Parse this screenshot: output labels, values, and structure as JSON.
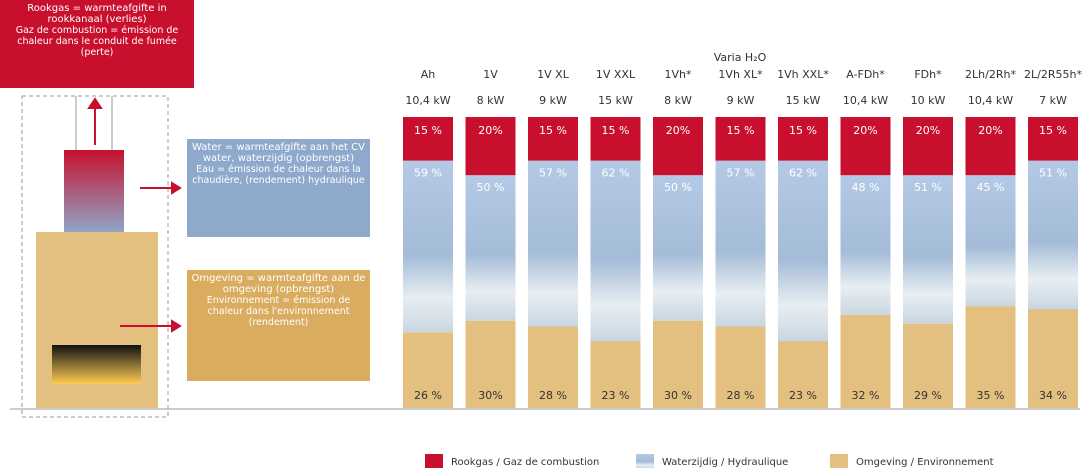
{
  "chart_data": {
    "type": "stacked_bar",
    "title": "Varia H₂O",
    "categories": [
      "Ah",
      "1V",
      "1V XL",
      "1V XXL",
      "1Vh*",
      "1Vh XL*",
      "1Vh XXL*",
      "A-FDh*",
      "FDh*",
      "2Lh/2Rh*",
      "2L/2R55h*"
    ],
    "power_labels": [
      "10,4 kW",
      "8 kW",
      "9 kW",
      "15 kW",
      "8 kW",
      "9 kW",
      "15 kW",
      "10,4 kW",
      "10 kW",
      "10,4 kW",
      "7 kW"
    ],
    "ylim": [
      0,
      100
    ],
    "series": [
      {
        "name": "Rookgas / Gaz de combustion",
        "color": "#c8102e",
        "values": [
          15,
          20,
          15,
          15,
          20,
          15,
          15,
          20,
          20,
          20,
          15
        ],
        "value_labels": [
          "15 %",
          "20%",
          "15 %",
          "15 %",
          "20%",
          "15 %",
          "15 %",
          "20%",
          "20%",
          "20%",
          "15 %"
        ]
      },
      {
        "name": "Waterzijdig / Hydraulique",
        "color": "#a9bfdc",
        "values": [
          59,
          50,
          57,
          62,
          50,
          57,
          62,
          48,
          51,
          45,
          51
        ],
        "value_labels": [
          "59 %",
          "50 %",
          "57 %",
          "62 %",
          "50 %",
          "57 %",
          "62 %",
          "48 %",
          "51 %",
          "45 %",
          "51 %"
        ]
      },
      {
        "name": "Omgeving / Environnement",
        "color": "#e3bf80",
        "values": [
          26,
          30,
          28,
          23,
          30,
          28,
          23,
          32,
          29,
          35,
          34
        ],
        "value_labels": [
          "26 %",
          "30%",
          "28 %",
          "23 %",
          "30 %",
          "28 %",
          "23 %",
          "32 %",
          "29 %",
          "35 %",
          "34 %"
        ]
      }
    ],
    "annotations": [
      {
        "title": "Rookgas = warmteafgifte in rookkanaal (verlies)",
        "text": "Gaz de combustion = émission de chaleur dans le conduit de fumée (perte)"
      },
      {
        "title": "Water = warmteafgifte aan het CV water, waterzijdig (opbrengst)",
        "text": "Eau = émission de chaleur dans la chaudière, (rendement) hydraulique"
      },
      {
        "title": "Omgeving = warmteafgifte aan de omgeving (opbrengst)",
        "text": "Environnement = émission de chaleur dans l'environnement (rendement)"
      }
    ]
  }
}
